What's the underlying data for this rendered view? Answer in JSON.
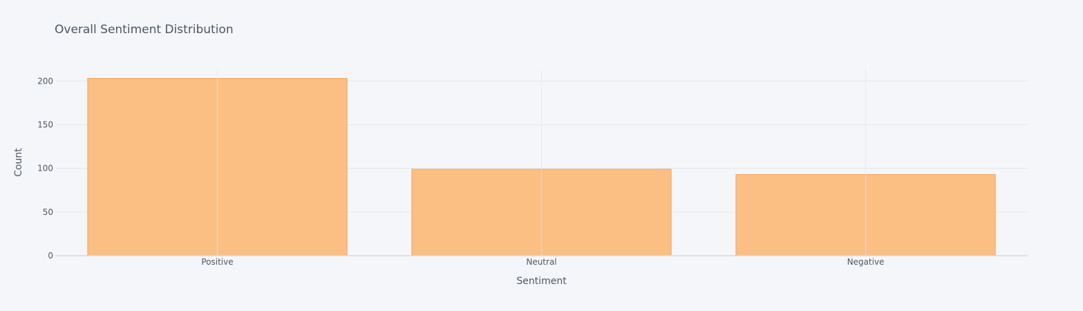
{
  "chart_data": {
    "type": "bar",
    "title": "Overall Sentiment Distribution",
    "xlabel": "Sentiment",
    "ylabel": "Count",
    "categories": [
      "Positive",
      "Neutral",
      "Negative"
    ],
    "values": [
      203,
      99,
      93
    ],
    "ylim": [
      0,
      213.7
    ],
    "yticks": [
      0,
      50,
      100,
      150,
      200
    ],
    "grid": true,
    "legend": "none"
  },
  "colors": {
    "background": "#f5f6f9",
    "bar_fill": "#fbbf84",
    "bar_stroke": "#f5a25a",
    "grid": "#e3e5ea",
    "text": "#4d5663"
  }
}
